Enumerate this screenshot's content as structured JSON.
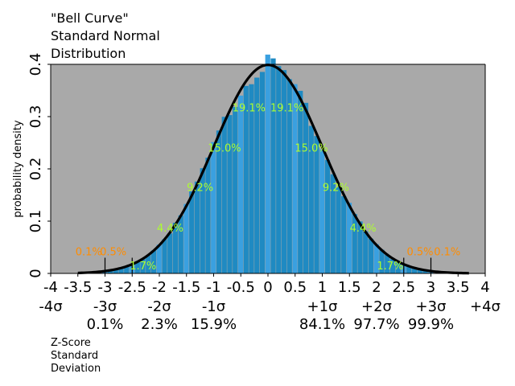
{
  "chart_data": {
    "type": "bar",
    "title_lines": [
      "\"Bell Curve\"",
      "Standard Normal",
      "Distribution"
    ],
    "ylabel": "probability density",
    "xlabel_lines": [
      "Z-Score",
      "Standard",
      "Deviation"
    ],
    "xlim": [
      -4,
      4
    ],
    "ylim": [
      0,
      0.4
    ],
    "x_ticks": [
      {
        "value": -4,
        "label": "-4"
      },
      {
        "value": -3.5,
        "label": "-3.5"
      },
      {
        "value": -3,
        "label": "-3"
      },
      {
        "value": -2.5,
        "label": "-2.5"
      },
      {
        "value": -2,
        "label": "-2"
      },
      {
        "value": -1.5,
        "label": "-1.5"
      },
      {
        "value": -1,
        "label": "-1"
      },
      {
        "value": -0.5,
        "label": "-0.5"
      },
      {
        "value": 0,
        "label": "0"
      },
      {
        "value": 0.5,
        "label": "0.5"
      },
      {
        "value": 1,
        "label": "1"
      },
      {
        "value": 1.5,
        "label": "1.5"
      },
      {
        "value": 2,
        "label": "2"
      },
      {
        "value": 2.5,
        "label": "2.5"
      },
      {
        "value": 3,
        "label": "3"
      },
      {
        "value": 3.5,
        "label": "3.5"
      },
      {
        "value": 4,
        "label": "4"
      }
    ],
    "y_ticks": [
      {
        "value": 0,
        "label": "0"
      },
      {
        "value": 0.1,
        "label": "0.1"
      },
      {
        "value": 0.2,
        "label": "0.2"
      },
      {
        "value": 0.3,
        "label": "0.3"
      },
      {
        "value": 0.4,
        "label": "0.4"
      }
    ],
    "sigma_labels": [
      {
        "value": -4,
        "label": "-4σ"
      },
      {
        "value": -3,
        "label": "-3σ"
      },
      {
        "value": -2,
        "label": "-2σ"
      },
      {
        "value": -1,
        "label": "-1σ"
      },
      {
        "value": 1,
        "label": "+1σ"
      },
      {
        "value": 2,
        "label": "+2σ"
      },
      {
        "value": 3,
        "label": "+3σ"
      },
      {
        "value": 4,
        "label": "+4σ"
      }
    ],
    "percentile_labels": [
      {
        "value": -3,
        "label": "0.1%"
      },
      {
        "value": -2,
        "label": "2.3%"
      },
      {
        "value": -1,
        "label": "15.9%"
      },
      {
        "value": 1,
        "label": "84.1%"
      },
      {
        "value": 2,
        "label": "97.7%"
      },
      {
        "value": 3,
        "label": "99.9%"
      }
    ],
    "histogram": {
      "bin_width": 0.1,
      "bins": [
        {
          "x": -3.0,
          "y": 0.005
        },
        {
          "x": -2.9,
          "y": 0.006
        },
        {
          "x": -2.8,
          "y": 0.008
        },
        {
          "x": -2.7,
          "y": 0.011
        },
        {
          "x": -2.6,
          "y": 0.014
        },
        {
          "x": -2.5,
          "y": 0.018
        },
        {
          "x": -2.4,
          "y": 0.022
        },
        {
          "x": -2.3,
          "y": 0.028
        },
        {
          "x": -2.2,
          "y": 0.036
        },
        {
          "x": -2.1,
          "y": 0.045
        },
        {
          "x": -2.0,
          "y": 0.055
        },
        {
          "x": -1.9,
          "y": 0.066
        },
        {
          "x": -1.8,
          "y": 0.08
        },
        {
          "x": -1.7,
          "y": 0.097
        },
        {
          "x": -1.6,
          "y": 0.112
        },
        {
          "x": -1.5,
          "y": 0.13
        },
        {
          "x": -1.4,
          "y": 0.15
        },
        {
          "x": -1.3,
          "y": 0.172
        },
        {
          "x": -1.2,
          "y": 0.195
        },
        {
          "x": -1.1,
          "y": 0.218
        },
        {
          "x": -1.0,
          "y": 0.242
        },
        {
          "x": -0.9,
          "y": 0.266
        },
        {
          "x": -0.8,
          "y": 0.29
        },
        {
          "x": -0.7,
          "y": 0.312
        },
        {
          "x": -0.6,
          "y": 0.333
        },
        {
          "x": -0.5,
          "y": 0.352
        },
        {
          "x": -0.4,
          "y": 0.368
        },
        {
          "x": -0.3,
          "y": 0.381
        },
        {
          "x": -0.2,
          "y": 0.391
        },
        {
          "x": -0.1,
          "y": 0.397
        },
        {
          "x": 0.0,
          "y": 0.399
        },
        {
          "x": 0.1,
          "y": 0.397
        },
        {
          "x": 0.2,
          "y": 0.391
        },
        {
          "x": 0.3,
          "y": 0.381
        },
        {
          "x": 0.4,
          "y": 0.368
        },
        {
          "x": 0.5,
          "y": 0.352
        },
        {
          "x": 0.6,
          "y": 0.333
        },
        {
          "x": 0.7,
          "y": 0.312
        },
        {
          "x": 0.8,
          "y": 0.29
        },
        {
          "x": 0.9,
          "y": 0.266
        },
        {
          "x": 1.0,
          "y": 0.242
        },
        {
          "x": 1.1,
          "y": 0.218
        },
        {
          "x": 1.2,
          "y": 0.195
        },
        {
          "x": 1.3,
          "y": 0.172
        },
        {
          "x": 1.4,
          "y": 0.15
        },
        {
          "x": 1.5,
          "y": 0.13
        },
        {
          "x": 1.6,
          "y": 0.112
        },
        {
          "x": 1.7,
          "y": 0.097
        },
        {
          "x": 1.8,
          "y": 0.08
        },
        {
          "x": 1.9,
          "y": 0.066
        },
        {
          "x": 2.0,
          "y": 0.055
        },
        {
          "x": 2.1,
          "y": 0.045
        },
        {
          "x": 2.2,
          "y": 0.036
        },
        {
          "x": 2.3,
          "y": 0.028
        },
        {
          "x": 2.4,
          "y": 0.022
        },
        {
          "x": 2.5,
          "y": 0.018
        },
        {
          "x": 2.6,
          "y": 0.014
        },
        {
          "x": 2.7,
          "y": 0.011
        },
        {
          "x": 2.8,
          "y": 0.008
        },
        {
          "x": 2.9,
          "y": 0.006
        },
        {
          "x": 3.0,
          "y": 0.004
        }
      ]
    },
    "curve": {
      "x_start": -3.5,
      "x_end": 3.7
    },
    "region_labels": [
      {
        "x": -3.3,
        "y": 0.035,
        "label": "0.1%",
        "color": "#ff8c00"
      },
      {
        "x": -2.85,
        "y": 0.035,
        "label": "0.5%",
        "color": "#ff8c00"
      },
      {
        "x": -2.3,
        "y": 0.008,
        "label": "1.7%",
        "color": "#adff2f"
      },
      {
        "x": -1.8,
        "y": 0.08,
        "label": "4.4%",
        "color": "#adff2f"
      },
      {
        "x": -1.25,
        "y": 0.158,
        "label": "9.2%",
        "color": "#adff2f"
      },
      {
        "x": -0.8,
        "y": 0.233,
        "label": "15.0%",
        "color": "#adff2f"
      },
      {
        "x": -0.35,
        "y": 0.31,
        "label": "19.1%",
        "color": "#adff2f"
      },
      {
        "x": 0.35,
        "y": 0.31,
        "label": "19.1%",
        "color": "#adff2f"
      },
      {
        "x": 0.8,
        "y": 0.233,
        "label": "15.0%",
        "color": "#adff2f"
      },
      {
        "x": 1.25,
        "y": 0.158,
        "label": "9.2%",
        "color": "#adff2f"
      },
      {
        "x": 1.75,
        "y": 0.08,
        "label": "4.4%",
        "color": "#adff2f"
      },
      {
        "x": 2.25,
        "y": 0.008,
        "label": "1.7%",
        "color": "#adff2f"
      },
      {
        "x": 2.8,
        "y": 0.035,
        "label": "0.5%",
        "color": "#ff8c00"
      },
      {
        "x": 3.3,
        "y": 0.035,
        "label": "0.1%",
        "color": "#ff8c00"
      }
    ],
    "sigma_marker_lines": [
      {
        "x": -3.0,
        "y_top": 0.03
      },
      {
        "x": -2.5,
        "y_top": 0.03
      },
      {
        "x": 2.5,
        "y_top": 0.03
      },
      {
        "x": 3.0,
        "y_top": 0.03
      }
    ],
    "colors": {
      "plot_background": "#a9a9a9",
      "bar": "#1f8ac2",
      "bar_highlight": "#3aa0e0",
      "curve": "#000000"
    }
  }
}
